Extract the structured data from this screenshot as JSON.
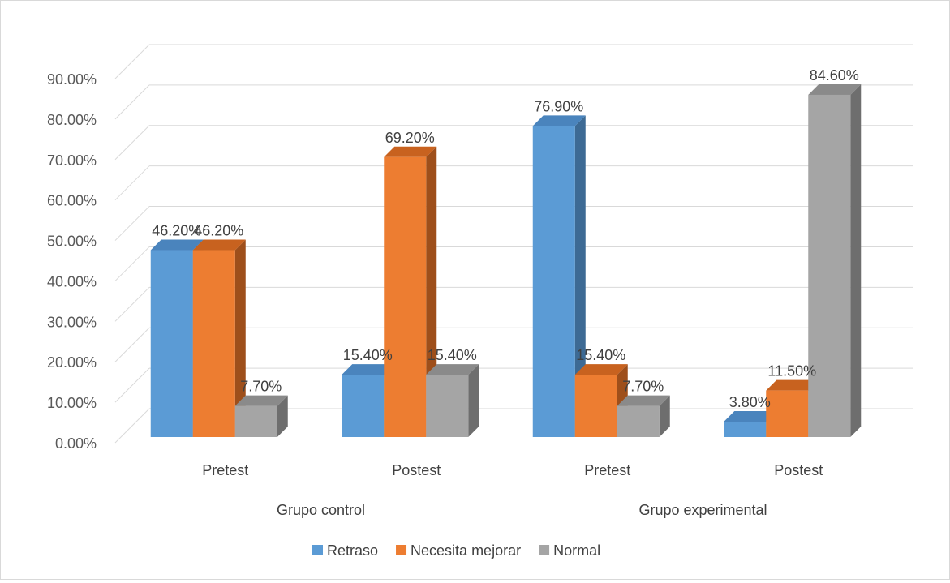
{
  "chart_data": {
    "type": "bar",
    "title": "",
    "xlabel": "",
    "ylabel": "",
    "ylim": [
      0,
      0.9
    ],
    "y_ticks": [
      0,
      0.1,
      0.2,
      0.3,
      0.4,
      0.5,
      0.6,
      0.7,
      0.8,
      0.9
    ],
    "y_tick_labels": [
      "0.00%",
      "10.00%",
      "20.00%",
      "30.00%",
      "40.00%",
      "50.00%",
      "60.00%",
      "70.00%",
      "80.00%",
      "90.00%"
    ],
    "style": "3d-clustered-column",
    "grid": true,
    "legend_position": "bottom",
    "categories": [
      "Pretest",
      "Postest",
      "Pretest",
      "Postest"
    ],
    "groups": [
      {
        "label": "Grupo control",
        "span": [
          0,
          1
        ]
      },
      {
        "label": "Grupo experimental",
        "span": [
          2,
          3
        ]
      }
    ],
    "series": [
      {
        "name": "Retraso",
        "color": "#5b9bd5",
        "side_color": "#3d6a94",
        "top_color": "#4a84bd",
        "values": [
          0.462,
          0.154,
          0.769,
          0.038
        ],
        "labels": [
          "46.20%",
          "15.40%",
          "76.90%",
          "3.80%"
        ]
      },
      {
        "name": "Necesita mejorar",
        "color": "#ed7d31",
        "side_color": "#9e4f1b",
        "top_color": "#c8621f",
        "values": [
          0.462,
          0.692,
          0.154,
          0.115
        ],
        "labels": [
          "46.20%",
          "69.20%",
          "15.40%",
          "11.50%"
        ]
      },
      {
        "name": "Normal",
        "color": "#a5a5a5",
        "side_color": "#6e6e6e",
        "top_color": "#8a8a8a",
        "values": [
          0.077,
          0.154,
          0.077,
          0.846
        ],
        "labels": [
          "7.70%",
          "15.40%",
          "7.70%",
          "84.60%"
        ]
      }
    ]
  }
}
